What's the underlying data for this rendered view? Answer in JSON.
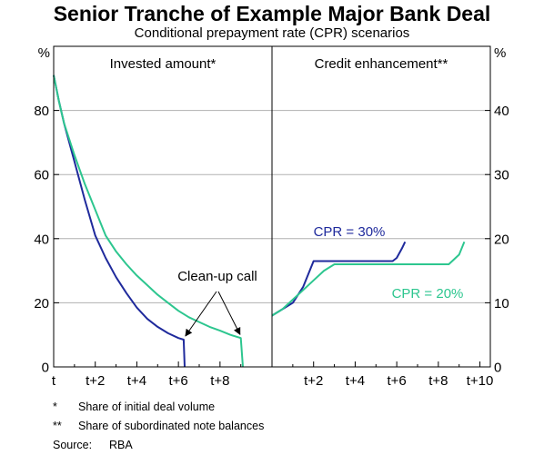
{
  "title": "Senior Tranche of Example Major Bank Deal",
  "subtitle": "Conditional prepayment rate (CPR) scenarios",
  "colors": {
    "cpr30": "#1f2a9c",
    "cpr20": "#2dc68f",
    "grid": "#b0b0b0"
  },
  "chart_data": [
    {
      "type": "line",
      "panel_title": "Invested amount*",
      "ylabel": "%",
      "ylim": [
        0,
        100
      ],
      "yticks": [
        0,
        20,
        40,
        60,
        80
      ],
      "xlim": [
        0,
        10.5
      ],
      "xticks": [
        0,
        2,
        4,
        6,
        8
      ],
      "xtick_labels": [
        "t",
        "t+2",
        "t+4",
        "t+6",
        "t+8"
      ],
      "series": [
        {
          "name": "CPR = 30%",
          "color": "#1f2a9c",
          "x": [
            0,
            0.25,
            0.5,
            1,
            1.5,
            2,
            2.5,
            3,
            3.5,
            4,
            4.5,
            5,
            5.5,
            6,
            6.25,
            6.3
          ],
          "y": [
            91,
            83,
            76,
            64,
            52,
            41,
            34,
            28,
            23,
            18.5,
            15,
            12.5,
            10.5,
            9,
            8.5,
            0
          ]
        },
        {
          "name": "CPR = 20%",
          "color": "#2dc68f",
          "x": [
            0,
            0.25,
            0.5,
            1,
            1.5,
            2,
            2.5,
            3,
            3.5,
            4,
            4.5,
            5,
            5.5,
            6,
            6.5,
            7,
            7.5,
            8,
            8.5,
            9,
            9.1
          ],
          "y": [
            91,
            83,
            76,
            66,
            57,
            49,
            41,
            36,
            32,
            28.5,
            25.5,
            22.5,
            20,
            17.5,
            15.5,
            14,
            12.5,
            11.3,
            10,
            9,
            0
          ]
        }
      ],
      "annotation": {
        "text": "Clean-up call"
      }
    },
    {
      "type": "line",
      "panel_title": "Credit enhancement**",
      "ylabel": "%",
      "ylim": [
        0,
        50
      ],
      "yticks": [
        0,
        10,
        20,
        30,
        40
      ],
      "xlim": [
        0,
        10.5
      ],
      "xticks": [
        2,
        4,
        6,
        8,
        10
      ],
      "xtick_labels": [
        "t+2",
        "t+4",
        "t+6",
        "t+8",
        "t+10"
      ],
      "series": [
        {
          "name": "CPR = 30%",
          "color": "#1f2a9c",
          "x": [
            0,
            0.5,
            1,
            1.5,
            2,
            3,
            4,
            5,
            5.8,
            6,
            6.25,
            6.4
          ],
          "y": [
            8,
            9,
            10,
            12.5,
            16.5,
            16.5,
            16.5,
            16.5,
            16.5,
            17,
            18.5,
            19.5
          ]
        },
        {
          "name": "CPR = 20%",
          "color": "#2dc68f",
          "x": [
            0,
            0.5,
            1,
            1.5,
            2,
            2.5,
            3,
            4,
            5,
            6,
            7,
            8,
            8.5,
            9,
            9.25
          ],
          "y": [
            8,
            9,
            10.5,
            12,
            13.5,
            15,
            16,
            16,
            16,
            16,
            16,
            16,
            16,
            17.5,
            19.5
          ]
        }
      ],
      "series_labels": [
        {
          "text": "CPR = 30%",
          "color": "#1f2a9c"
        },
        {
          "text": "CPR = 20%",
          "color": "#2dc68f"
        }
      ]
    }
  ],
  "footnotes": [
    {
      "mark": "*",
      "text": "Share of initial deal volume"
    },
    {
      "mark": "**",
      "text": "Share of subordinated note balances"
    }
  ],
  "source": {
    "label": "Source:",
    "text": "RBA"
  }
}
